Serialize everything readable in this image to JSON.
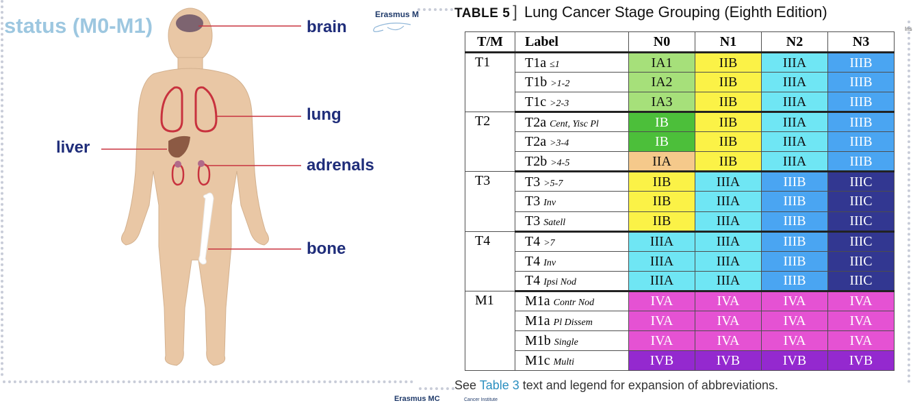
{
  "left_slide": {
    "title": "status (M0-M1)",
    "organ_labels": {
      "brain": "brain",
      "lung": "lung",
      "liver": "liver",
      "adrenals": "adrenals",
      "bone": "bone"
    },
    "logo_top": "Erasmus M",
    "logo_bottom": "Erasmus MC",
    "logo_sub": "Cancer Institute"
  },
  "right_slide": {
    "table_label": "TABLE 5",
    "table_title": "Lung Cancer Stage Grouping (Eighth Edition)",
    "corner_text": "Ins",
    "headers": [
      "T/M",
      "Label",
      "N0",
      "N1",
      "N2",
      "N3"
    ],
    "groups": [
      {
        "tm": "T1",
        "rows": [
          {
            "label": "T1a",
            "sub": "≤1",
            "stages": [
              "IA1",
              "IIB",
              "IIIA",
              "IIIB"
            ]
          },
          {
            "label": "T1b",
            "sub": ">1-2",
            "stages": [
              "IA2",
              "IIB",
              "IIIA",
              "IIIB"
            ]
          },
          {
            "label": "T1c",
            "sub": ">2-3",
            "stages": [
              "IA3",
              "IIB",
              "IIIA",
              "IIIB"
            ]
          }
        ]
      },
      {
        "tm": "T2",
        "rows": [
          {
            "label": "T2a",
            "sub": "Cent, Yisc Pl",
            "stages": [
              "IB",
              "IIB",
              "IIIA",
              "IIIB"
            ]
          },
          {
            "label": "T2a",
            "sub": ">3-4",
            "stages": [
              "IB",
              "IIB",
              "IIIA",
              "IIIB"
            ]
          },
          {
            "label": "T2b",
            "sub": ">4-5",
            "stages": [
              "IIA",
              "IIB",
              "IIIA",
              "IIIB"
            ]
          }
        ]
      },
      {
        "tm": "T3",
        "rows": [
          {
            "label": "T3",
            "sub": ">5-7",
            "stages": [
              "IIB",
              "IIIA",
              "IIIB",
              "IIIC"
            ]
          },
          {
            "label": "T3",
            "sub": "Inv",
            "stages": [
              "IIB",
              "IIIA",
              "IIIB",
              "IIIC"
            ]
          },
          {
            "label": "T3",
            "sub": "Satell",
            "stages": [
              "IIB",
              "IIIA",
              "IIIB",
              "IIIC"
            ]
          }
        ]
      },
      {
        "tm": "T4",
        "rows": [
          {
            "label": "T4",
            "sub": ">7",
            "stages": [
              "IIIA",
              "IIIA",
              "IIIB",
              "IIIC"
            ]
          },
          {
            "label": "T4",
            "sub": "Inv",
            "stages": [
              "IIIA",
              "IIIA",
              "IIIB",
              "IIIC"
            ]
          },
          {
            "label": "T4",
            "sub": "Ipsi Nod",
            "stages": [
              "IIIA",
              "IIIA",
              "IIIB",
              "IIIC"
            ]
          }
        ]
      },
      {
        "tm": "M1",
        "rows": [
          {
            "label": "M1a",
            "sub": "Contr Nod",
            "stages": [
              "IVA",
              "IVA",
              "IVA",
              "IVA"
            ]
          },
          {
            "label": "M1a",
            "sub": "Pl Dissem",
            "stages": [
              "IVA",
              "IVA",
              "IVA",
              "IVA"
            ]
          },
          {
            "label": "M1b",
            "sub": "Single",
            "stages": [
              "IVA",
              "IVA",
              "IVA",
              "IVA"
            ]
          },
          {
            "label": "M1c",
            "sub": "Multi",
            "stages": [
              "IVB",
              "IVB",
              "IVB",
              "IVB"
            ]
          }
        ]
      }
    ],
    "footnote_prefix": "See ",
    "footnote_link": "Table 3",
    "footnote_suffix": " text and legend for expansion of abbreviations.",
    "stage_colors": {
      "IA1": {
        "bg": "#a6e07a",
        "fg": "#111111"
      },
      "IA2": {
        "bg": "#a6e07a",
        "fg": "#111111"
      },
      "IA3": {
        "bg": "#a6e07a",
        "fg": "#111111"
      },
      "IB": {
        "bg": "#4cbf3a",
        "fg": "#ffffff"
      },
      "IIA": {
        "bg": "#f5c98b",
        "fg": "#111111"
      },
      "IIB": {
        "bg": "#fbf247",
        "fg": "#111111"
      },
      "IIIA": {
        "bg": "#6fe6f4",
        "fg": "#111111"
      },
      "IIIB": {
        "bg": "#4aa5f2",
        "fg": "#ffffff"
      },
      "IIIC": {
        "bg": "#323791",
        "fg": "#ffffff"
      },
      "IVA": {
        "bg": "#e552d3",
        "fg": "#ffffff"
      },
      "IVB": {
        "bg": "#9429cf",
        "fg": "#ffffff"
      }
    }
  }
}
